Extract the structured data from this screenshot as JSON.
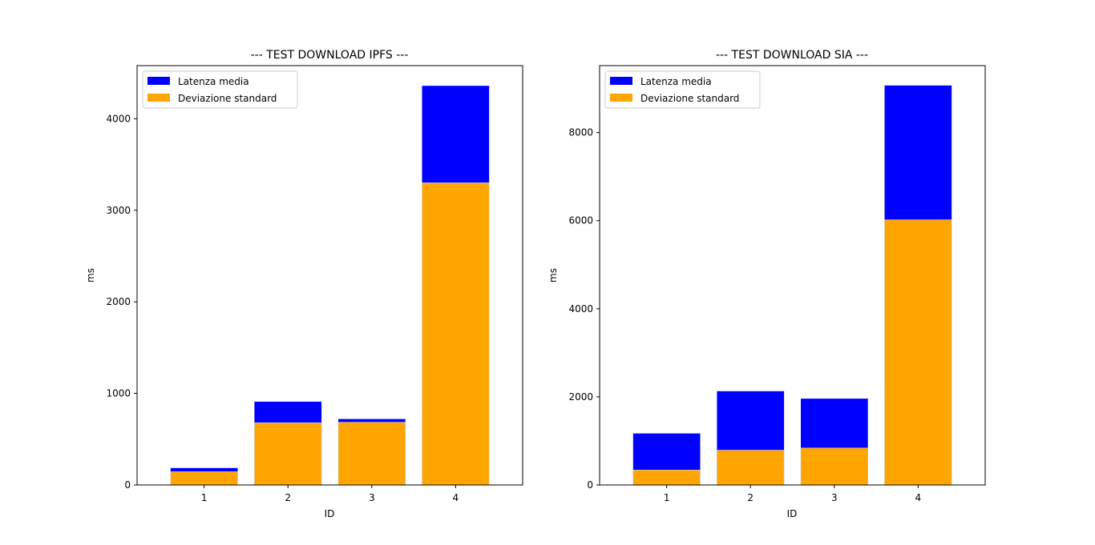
{
  "chart_data": [
    {
      "type": "bar",
      "title": "--- TEST DOWNLOAD IPFS ---",
      "xlabel": "ID",
      "ylabel": "ms",
      "categories": [
        "1",
        "2",
        "3",
        "4"
      ],
      "ylim": [
        0,
        4580
      ],
      "yticks": [
        0,
        1000,
        2000,
        3000,
        4000
      ],
      "grid": false,
      "legend_position": "top-left",
      "series": [
        {
          "name": "Latenza media",
          "color": "#0000ff",
          "values": [
            185,
            910,
            720,
            4360
          ]
        },
        {
          "name": "Deviazione standard",
          "color": "#ffa500",
          "values": [
            145,
            680,
            685,
            3300
          ]
        }
      ]
    },
    {
      "type": "bar",
      "title": "--- TEST DOWNLOAD SIA ---",
      "xlabel": "ID",
      "ylabel": "ms",
      "categories": [
        "1",
        "2",
        "3",
        "4"
      ],
      "ylim": [
        0,
        9520
      ],
      "yticks": [
        0,
        2000,
        4000,
        6000,
        8000
      ],
      "grid": false,
      "legend_position": "top-left",
      "series": [
        {
          "name": "Latenza media",
          "color": "#0000ff",
          "values": [
            1170,
            2130,
            1960,
            9070
          ]
        },
        {
          "name": "Deviazione standard",
          "color": "#ffa500",
          "values": [
            340,
            790,
            840,
            6020
          ]
        }
      ]
    }
  ]
}
